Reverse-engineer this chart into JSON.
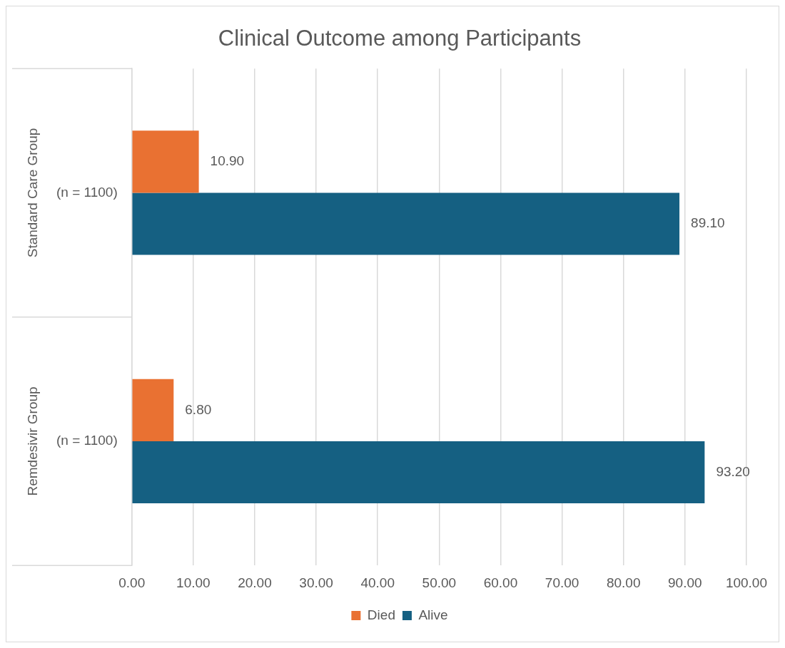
{
  "chart_data": {
    "type": "bar",
    "orientation": "horizontal",
    "title": "Clinical Outcome among Participants",
    "categories": [
      "(n = 1100)",
      "(n = 1100)"
    ],
    "annotations": [
      "Standard Care Group",
      "Remdesivir Group"
    ],
    "series": [
      {
        "name": "Died",
        "color": "#e97132",
        "values": [
          10.9,
          6.8
        ]
      },
      {
        "name": "Alive",
        "color": "#156082",
        "values": [
          89.1,
          93.2
        ]
      }
    ],
    "xlim": [
      0,
      100
    ],
    "xticks": [
      {
        "value": 0,
        "label": "0.00"
      },
      {
        "value": 10,
        "label": "10.00"
      },
      {
        "value": 20,
        "label": "20.00"
      },
      {
        "value": 30,
        "label": "30.00"
      },
      {
        "value": 40,
        "label": "40.00"
      },
      {
        "value": 50,
        "label": "50.00"
      },
      {
        "value": 60,
        "label": "60.00"
      },
      {
        "value": 70,
        "label": "70.00"
      },
      {
        "value": 80,
        "label": "80.00"
      },
      {
        "value": 90,
        "label": "90.00"
      },
      {
        "value": 100,
        "label": "100.00"
      }
    ],
    "value_labels": [
      [
        "10.90",
        "6.80"
      ],
      [
        "89.10",
        "93.20"
      ]
    ],
    "grid": "x",
    "legend": "bottom"
  }
}
